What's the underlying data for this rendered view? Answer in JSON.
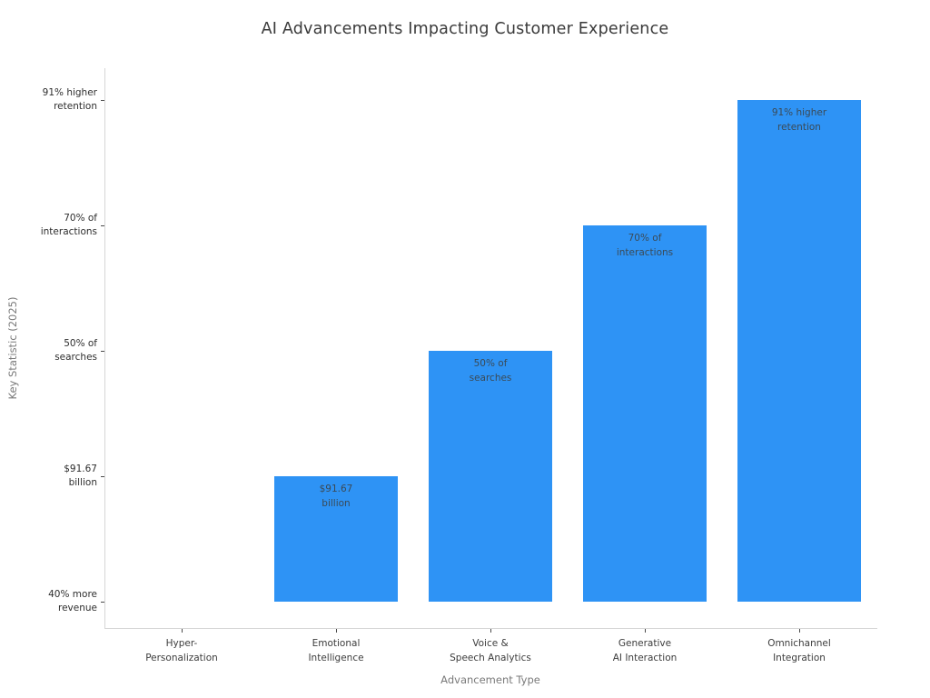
{
  "chart_data": {
    "type": "bar",
    "orientation": "vertical",
    "title": "AI Advancements Impacting Customer Experience",
    "xlabel": "Advancement Type",
    "ylabel": "Key Statistic (2025)",
    "categories": [
      "Hyper-Personalization",
      "Emotional Intelligence",
      "Voice & Speech Analytics",
      "Generative AI Interaction",
      "Omnichannel Integration"
    ],
    "x_tick_labels": [
      "Hyper-\nPersonalization",
      "Emotional\nIntelligence",
      "Voice &\nSpeech Analytics",
      "Generative\nAI Interaction",
      "Omnichannel\nIntegration"
    ],
    "values": [
      0,
      1,
      2,
      3,
      4
    ],
    "value_statistics": [
      "40% more revenue",
      "$91.67 billion",
      "50% of searches",
      "70% of interactions",
      "91% higher retention"
    ],
    "y_tick_labels": [
      "40% more\nrevenue",
      "$91.67\nbillion",
      "50% of\nsearches",
      "70% of\ninteractions",
      "91% higher\nretention"
    ],
    "bar_labels": [
      "",
      "$91.67\nbillion",
      "50% of\nsearches",
      "70% of\ninteractions",
      "91% higher\nretention"
    ],
    "ylim": [
      -0.2,
      4.27
    ],
    "grid": false,
    "legend": false,
    "bar_color": "#2E93F5"
  },
  "colors": {
    "bar": "#2E93F5",
    "title_text": "#3a3a3a",
    "tick_text": "#2e2e2e",
    "axis_label_text": "#7a7a7a",
    "spine": "#d6d6d6",
    "bar_label_text": "#3b4a56"
  }
}
